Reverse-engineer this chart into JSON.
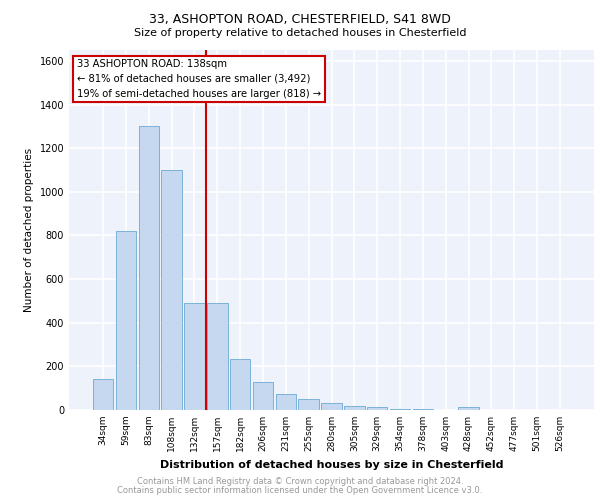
{
  "title1": "33, ASHOPTON ROAD, CHESTERFIELD, S41 8WD",
  "title2": "Size of property relative to detached houses in Chesterfield",
  "xlabel": "Distribution of detached houses by size in Chesterfield",
  "ylabel": "Number of detached properties",
  "categories": [
    "34sqm",
    "59sqm",
    "83sqm",
    "108sqm",
    "132sqm",
    "157sqm",
    "182sqm",
    "206sqm",
    "231sqm",
    "255sqm",
    "280sqm",
    "305sqm",
    "329sqm",
    "354sqm",
    "378sqm",
    "403sqm",
    "428sqm",
    "452sqm",
    "477sqm",
    "501sqm",
    "526sqm"
  ],
  "values": [
    140,
    820,
    1300,
    1100,
    490,
    490,
    235,
    130,
    75,
    50,
    30,
    20,
    15,
    5,
    5,
    2,
    15,
    0,
    0,
    0,
    0
  ],
  "bar_color": "#c5d8f0",
  "bar_edge_color": "#6aaad4",
  "annotation_text_lines": [
    "33 ASHOPTON ROAD: 138sqm",
    "← 81% of detached houses are smaller (3,492)",
    "19% of semi-detached houses are larger (818) →"
  ],
  "red_color": "#cc0000",
  "red_line_x": 4.5,
  "ylim": [
    0,
    1650
  ],
  "yticks": [
    0,
    200,
    400,
    600,
    800,
    1000,
    1200,
    1400,
    1600
  ],
  "bg_color": "#eef2fa",
  "grid_color": "#ffffff",
  "footer1": "Contains HM Land Registry data © Crown copyright and database right 2024.",
  "footer2": "Contains public sector information licensed under the Open Government Licence v3.0."
}
